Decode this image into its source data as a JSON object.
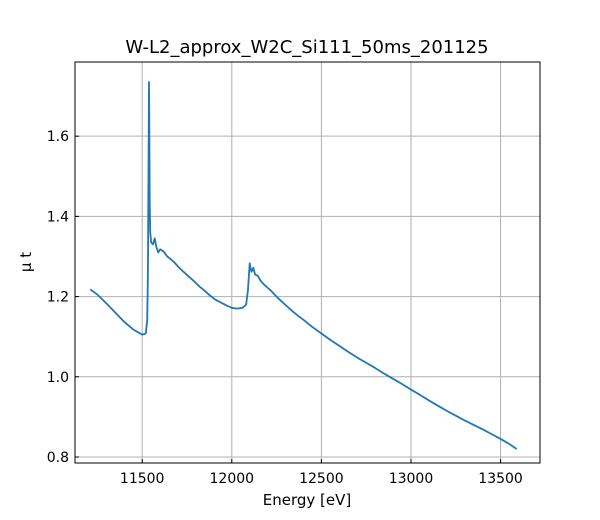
{
  "chart_data": {
    "type": "line",
    "title": "W-L2_approx_W2C_Si111_50ms_201125",
    "xlabel": "Energy [eV]",
    "ylabel": "μ t",
    "xlim": [
      11125,
      13720
    ],
    "ylim": [
      0.785,
      1.785
    ],
    "xticks": [
      11500,
      12000,
      12500,
      13000,
      13500
    ],
    "yticks": [
      0.8,
      1.0,
      1.2,
      1.4,
      1.6
    ],
    "xtick_labels": [
      "11500",
      "12000",
      "12500",
      "13000",
      "13500"
    ],
    "ytick_labels": [
      "0.8",
      "1.0",
      "1.2",
      "1.4",
      "1.6"
    ],
    "grid": true,
    "color": "#1f77b4",
    "series": [
      {
        "x": [
          11210,
          11250,
          11300,
          11350,
          11400,
          11450,
          11500,
          11520,
          11528,
          11532,
          11535,
          11538,
          11540,
          11542,
          11545,
          11550,
          11560,
          11570,
          11580,
          11590,
          11600,
          11620,
          11640,
          11660,
          11680,
          11700,
          11730,
          11760,
          11790,
          11820,
          11850,
          11880,
          11910,
          11940,
          11970,
          12000,
          12030,
          12060,
          12080,
          12090,
          12095,
          12100,
          12105,
          12110,
          12120,
          12130,
          12145,
          12160,
          12180,
          12200,
          12220,
          12250,
          12280,
          12310,
          12340,
          12370,
          12400,
          12450,
          12500,
          12550,
          12600,
          12650,
          12700,
          12750,
          12800,
          12850,
          12900,
          12950,
          13000,
          13050,
          13100,
          13150,
          13200,
          13250,
          13300,
          13350,
          13400,
          13450,
          13500,
          13550,
          13590
        ],
        "y": [
          1.218,
          1.205,
          1.183,
          1.16,
          1.137,
          1.118,
          1.105,
          1.108,
          1.14,
          1.26,
          1.5,
          1.735,
          1.6,
          1.43,
          1.36,
          1.335,
          1.33,
          1.345,
          1.322,
          1.31,
          1.318,
          1.312,
          1.3,
          1.293,
          1.285,
          1.275,
          1.262,
          1.25,
          1.238,
          1.225,
          1.214,
          1.202,
          1.192,
          1.185,
          1.178,
          1.172,
          1.17,
          1.172,
          1.18,
          1.215,
          1.25,
          1.283,
          1.27,
          1.262,
          1.272,
          1.255,
          1.252,
          1.24,
          1.23,
          1.222,
          1.214,
          1.2,
          1.187,
          1.175,
          1.163,
          1.152,
          1.142,
          1.124,
          1.108,
          1.092,
          1.077,
          1.062,
          1.048,
          1.035,
          1.022,
          1.008,
          0.995,
          0.982,
          0.968,
          0.955,
          0.941,
          0.928,
          0.915,
          0.903,
          0.891,
          0.88,
          0.869,
          0.857,
          0.845,
          0.832,
          0.82
        ]
      }
    ]
  }
}
